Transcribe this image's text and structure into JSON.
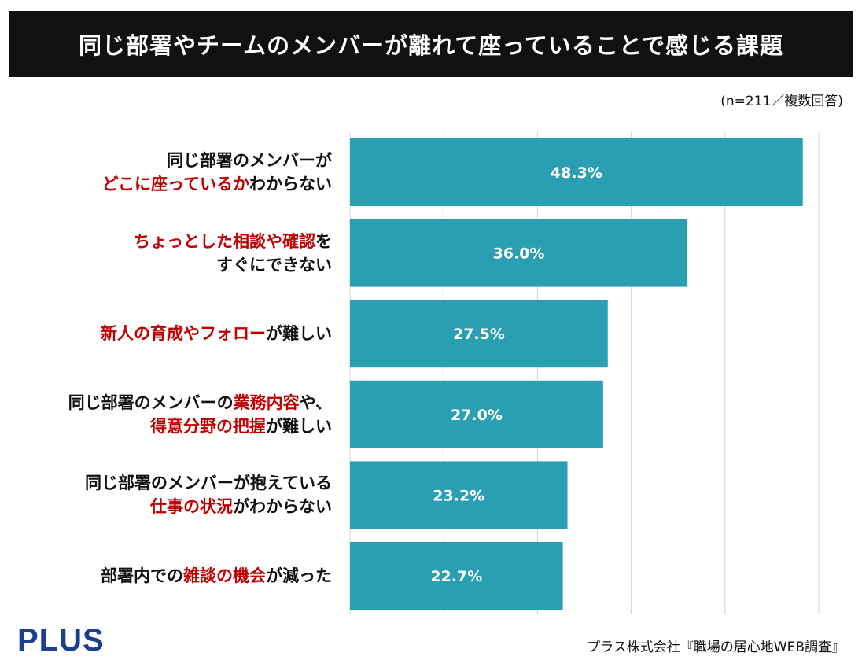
{
  "title": "同じ部署やチームのメンバーが離れて座っていることで感じる課題",
  "note": "(n=211／複数回答)",
  "footer": {
    "logo": "PLUS",
    "source": "プラス株式会社『職場の居心地WEB調査』"
  },
  "colors": {
    "bar": "#2a9fb2",
    "highlight": "#c00000",
    "banner": "#111111",
    "logo": "#1b3f8f"
  },
  "chart_data": {
    "type": "bar",
    "orientation": "horizontal",
    "title": "同じ部署やチームのメンバーが離れて座っていることで感じる課題",
    "xlim": [
      0,
      50
    ],
    "grid": true,
    "categories": [
      [
        [
          {
            "t": "同じ部署のメンバーが",
            "h": false
          }
        ],
        [
          {
            "t": "どこに座っているか",
            "h": true
          },
          {
            "t": "わからない",
            "h": false
          }
        ]
      ],
      [
        [
          {
            "t": "ちょっとした相談や確認",
            "h": true
          },
          {
            "t": "を",
            "h": false
          }
        ],
        [
          {
            "t": "すぐにできない",
            "h": false
          }
        ]
      ],
      [
        [
          {
            "t": "新人の育成やフォロー",
            "h": true
          },
          {
            "t": "が難しい",
            "h": false
          }
        ]
      ],
      [
        [
          {
            "t": "同じ部署のメンバーの",
            "h": false
          },
          {
            "t": "業務内容",
            "h": true
          },
          {
            "t": "や、",
            "h": false
          }
        ],
        [
          {
            "t": "得意分野の把握",
            "h": true
          },
          {
            "t": "が難しい",
            "h": false
          }
        ]
      ],
      [
        [
          {
            "t": "同じ部署のメンバーが抱えている",
            "h": false
          }
        ],
        [
          {
            "t": "仕事の状況",
            "h": true
          },
          {
            "t": "がわからない",
            "h": false
          }
        ]
      ],
      [
        [
          {
            "t": "部署内での",
            "h": false
          },
          {
            "t": "雑談の機会",
            "h": true
          },
          {
            "t": "が減った",
            "h": false
          }
        ]
      ]
    ],
    "values": [
      48.3,
      36.0,
      27.5,
      27.0,
      23.2,
      22.7
    ],
    "value_labels": [
      "48.3%",
      "36.0%",
      "27.5%",
      "27.0%",
      "23.2%",
      "22.7%"
    ]
  }
}
